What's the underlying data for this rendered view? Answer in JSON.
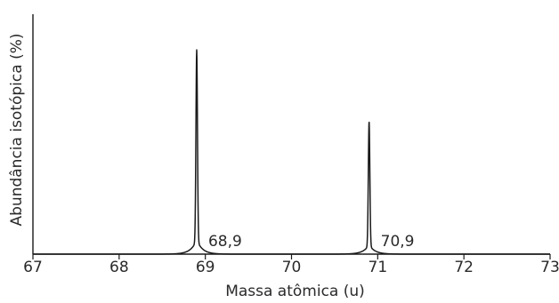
{
  "chart_data": {
    "type": "line",
    "title": "",
    "xlabel": "Massa atômica (u)",
    "ylabel": "Abundância isotópica (%)",
    "xlim": [
      67,
      73
    ],
    "x_ticks": [
      "67",
      "68",
      "69",
      "70",
      "71",
      "72",
      "73"
    ],
    "y_ticks": [],
    "grid": false,
    "legend": "none",
    "line_color": "#1a1a1a",
    "peaks": [
      {
        "x": 68.9,
        "label": "68,9",
        "relative_height": 1.0
      },
      {
        "x": 70.9,
        "label": "70,9",
        "relative_height": 0.65
      }
    ]
  }
}
